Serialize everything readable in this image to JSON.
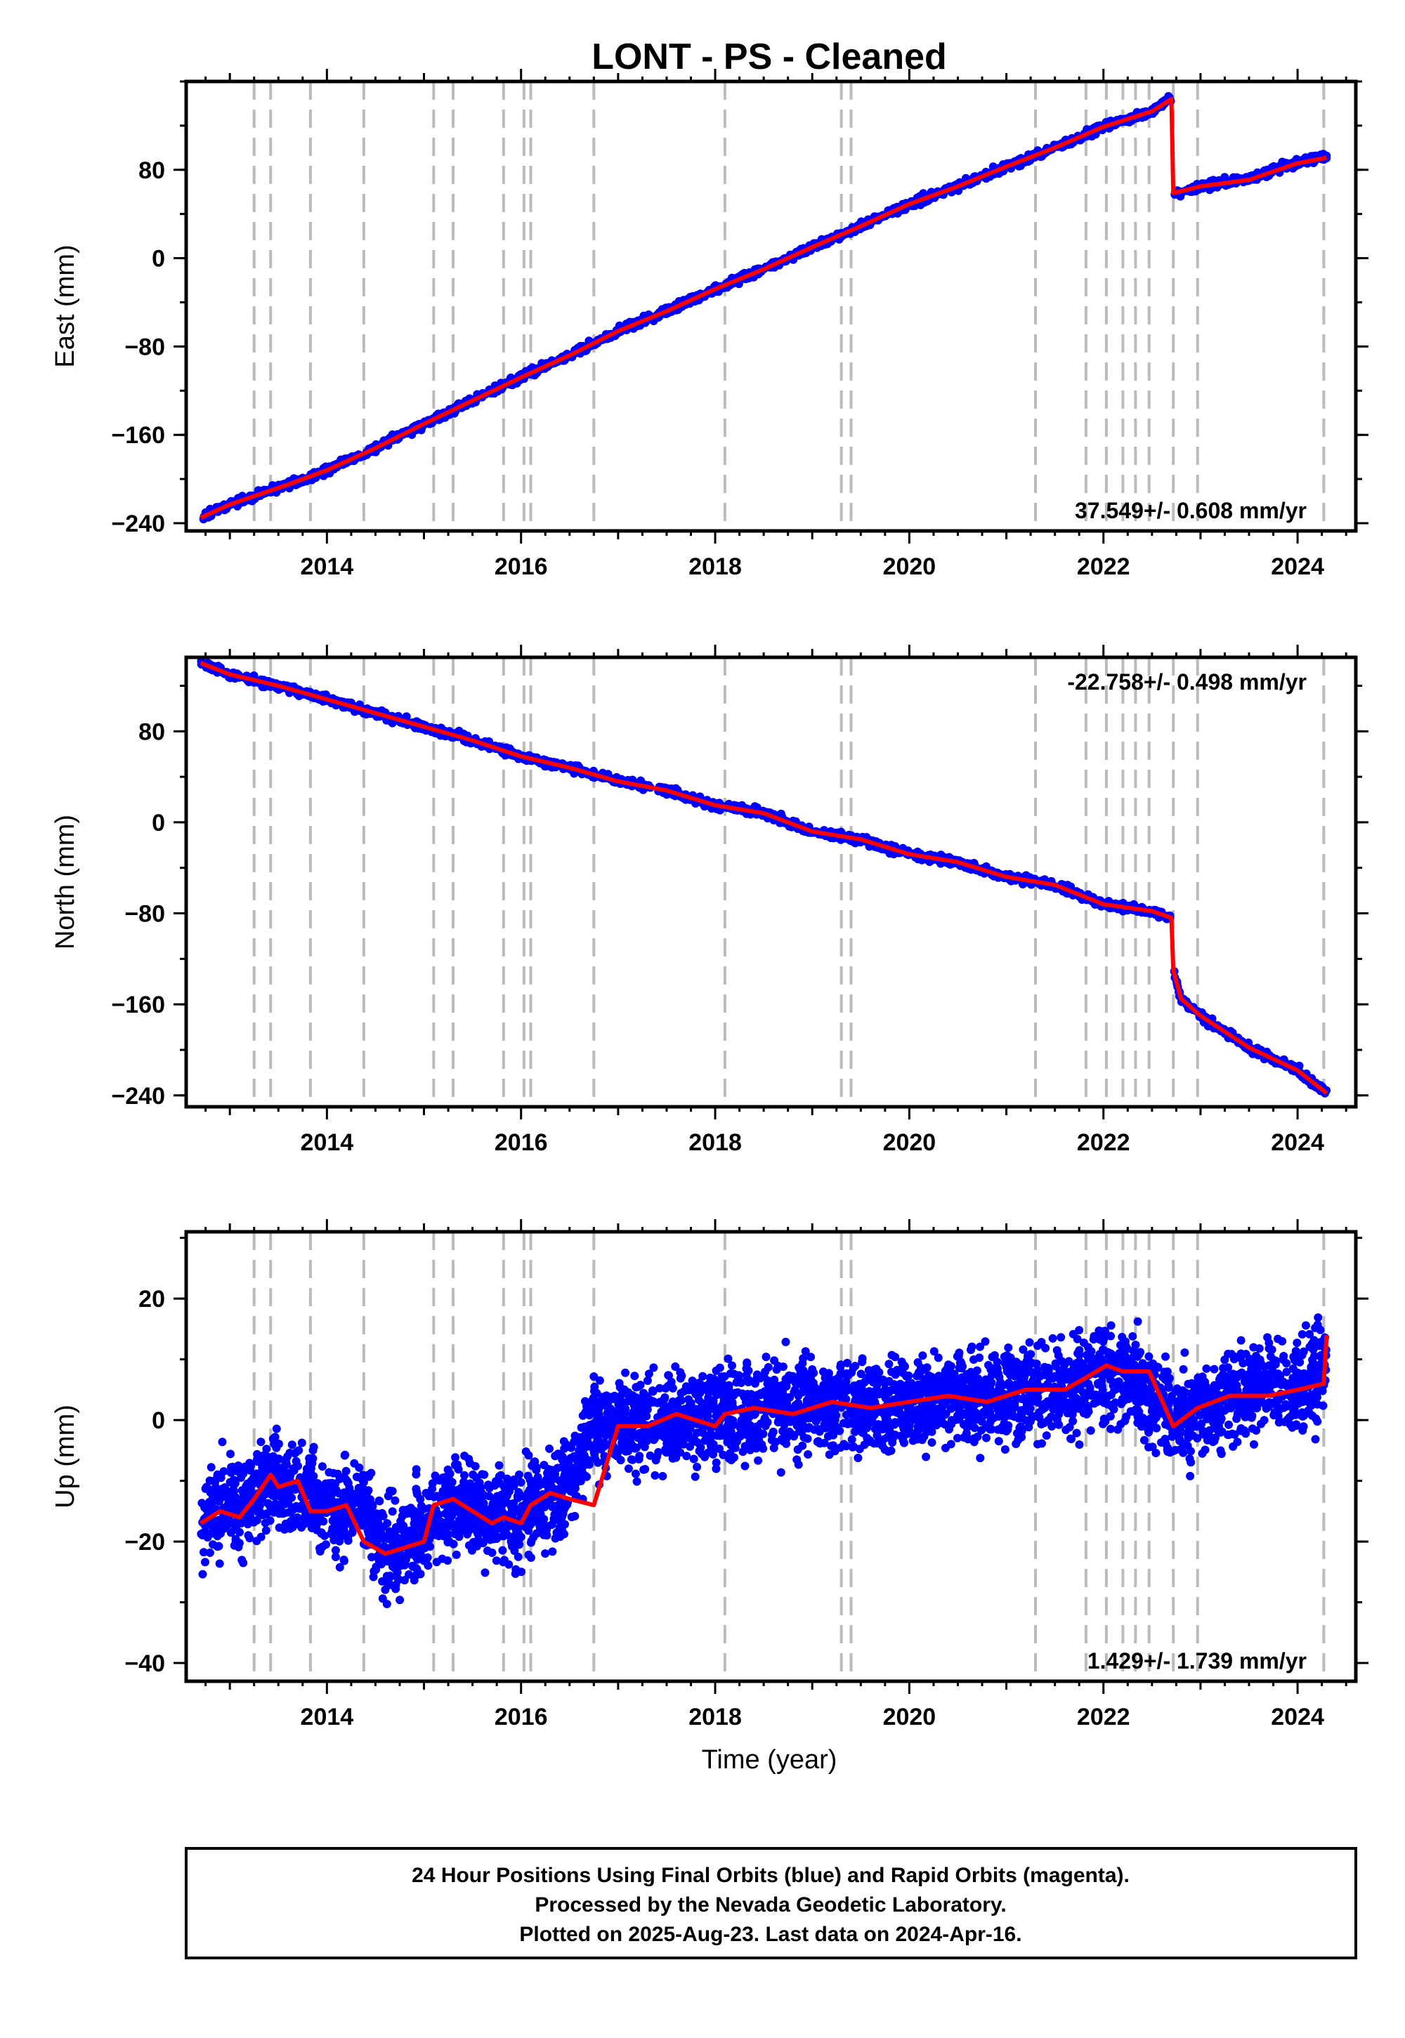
{
  "title": "LONT  - PS - Cleaned",
  "xlabel": "Time (year)",
  "footer": {
    "line1": "24 Hour Positions Using Final Orbits (blue) and Rapid Orbits (magenta).",
    "line2": "Processed by the Nevada Geodetic Laboratory.",
    "line3": "Plotted on 2025-Aug-23. Last data on 2024-Apr-16."
  },
  "colors": {
    "data": "#0000ff",
    "model": "#ff0000",
    "event_lines": "#bbbbbb",
    "frame": "#000000"
  },
  "chart_data": [
    {
      "type": "scatter",
      "name": "east",
      "ylabel": "East (mm)",
      "rate": "37.549+/- 0.608 mm/yr",
      "rate_position": "bottom-right",
      "xlim": [
        2012.55,
        2024.6
      ],
      "ylim": [
        -247,
        160
      ],
      "xticks": [
        2014,
        2016,
        2018,
        2020,
        2022,
        2024
      ],
      "yticks": [
        -240,
        -160,
        -80,
        0,
        80
      ],
      "event_lines": [
        2013.25,
        2013.42,
        2013.83,
        2014.38,
        2015.1,
        2015.3,
        2015.82,
        2016.03,
        2016.1,
        2016.75,
        2018.1,
        2019.3,
        2019.4,
        2021.3,
        2021.82,
        2022.03,
        2022.2,
        2022.33,
        2022.47,
        2022.72,
        2022.97,
        2024.27
      ],
      "series": [
        {
          "name": "",
          "style": "dots",
          "x": [
            2012.7,
            2013.0,
            2013.3,
            2013.6,
            2014.0,
            2014.5,
            2015.0,
            2015.5,
            2016.0,
            2016.5,
            2017.0,
            2017.5,
            2018.0,
            2018.5,
            2019.0,
            2019.5,
            2020.0,
            2020.5,
            2021.0,
            2021.5,
            2022.0,
            2022.5,
            2022.7,
            2022.72,
            2023.0,
            2023.5,
            2024.0,
            2024.3
          ],
          "y": [
            -235,
            -223,
            -214,
            -205,
            -192,
            -172,
            -150,
            -129,
            -108,
            -88,
            -66,
            -48,
            -28,
            -10,
            10,
            29,
            49,
            65,
            83,
            100,
            119,
            133,
            144,
            57,
            65,
            72,
            87,
            92
          ]
        },
        {
          "name": "",
          "style": "line",
          "x": [
            2012.7,
            2013.0,
            2013.3,
            2013.6,
            2014.0,
            2014.5,
            2015.0,
            2015.5,
            2016.0,
            2016.5,
            2017.0,
            2017.5,
            2018.0,
            2018.5,
            2019.0,
            2019.5,
            2020.0,
            2020.5,
            2021.0,
            2021.5,
            2022.0,
            2022.5,
            2022.7,
            2022.72,
            2023.0,
            2023.5,
            2024.0,
            2024.3
          ],
          "y": [
            -235,
            -223,
            -214,
            -205,
            -192,
            -172,
            -150,
            -129,
            -108,
            -88,
            -66,
            -48,
            -28,
            -10,
            10,
            29,
            49,
            65,
            83,
            100,
            119,
            133,
            144,
            59,
            65,
            71,
            86,
            91
          ]
        }
      ]
    },
    {
      "type": "scatter",
      "name": "north",
      "ylabel": "North (mm)",
      "rate": "-22.758+/- 0.498 mm/yr",
      "rate_position": "top-right",
      "xlim": [
        2012.55,
        2024.6
      ],
      "ylim": [
        -250,
        145
      ],
      "xticks": [
        2014,
        2016,
        2018,
        2020,
        2022,
        2024
      ],
      "yticks": [
        -240,
        -160,
        -80,
        0,
        80
      ],
      "event_lines": [
        2013.25,
        2013.42,
        2013.83,
        2014.38,
        2015.1,
        2015.3,
        2015.82,
        2016.03,
        2016.1,
        2016.75,
        2018.1,
        2019.3,
        2019.4,
        2021.3,
        2021.82,
        2022.03,
        2022.2,
        2022.33,
        2022.47,
        2022.72,
        2022.97,
        2024.27
      ],
      "series": [
        {
          "name": "",
          "style": "dots",
          "x": [
            2012.7,
            2013.0,
            2013.5,
            2014.0,
            2014.5,
            2015.0,
            2015.5,
            2016.0,
            2016.5,
            2017.0,
            2017.5,
            2018.0,
            2018.5,
            2019.0,
            2019.5,
            2020.0,
            2020.5,
            2021.0,
            2021.5,
            2022.0,
            2022.5,
            2022.7,
            2022.72,
            2022.8,
            2023.0,
            2023.5,
            2024.0,
            2024.3
          ],
          "y": [
            140,
            130,
            120,
            108,
            96,
            84,
            72,
            58,
            48,
            36,
            28,
            15,
            8,
            -8,
            -15,
            -28,
            -35,
            -48,
            -55,
            -72,
            -78,
            -84,
            -130,
            -155,
            -170,
            -198,
            -218,
            -238
          ]
        },
        {
          "name": "",
          "style": "line",
          "x": [
            2012.7,
            2013.0,
            2013.5,
            2014.0,
            2014.5,
            2015.0,
            2015.5,
            2016.0,
            2016.5,
            2017.0,
            2017.5,
            2018.0,
            2018.5,
            2019.0,
            2019.5,
            2020.0,
            2020.5,
            2021.0,
            2021.5,
            2022.0,
            2022.5,
            2022.7,
            2022.72,
            2022.8,
            2023.0,
            2023.5,
            2024.0,
            2024.3
          ],
          "y": [
            140,
            130,
            120,
            108,
            96,
            84,
            72,
            58,
            48,
            36,
            28,
            15,
            8,
            -8,
            -15,
            -28,
            -35,
            -48,
            -55,
            -72,
            -78,
            -84,
            -130,
            -155,
            -170,
            -198,
            -218,
            -238
          ]
        }
      ]
    },
    {
      "type": "scatter",
      "name": "up",
      "ylabel": "Up (mm)",
      "rate": "1.429+/- 1.739 mm/yr",
      "rate_position": "bottom-right",
      "xlim": [
        2012.55,
        2024.6
      ],
      "ylim": [
        -43,
        31
      ],
      "xticks": [
        2014,
        2016,
        2018,
        2020,
        2022,
        2024
      ],
      "yticks": [
        -40,
        -20,
        0,
        20
      ],
      "event_lines": [
        2013.25,
        2013.42,
        2013.83,
        2014.38,
        2015.1,
        2015.3,
        2015.82,
        2016.03,
        2016.1,
        2016.75,
        2018.1,
        2019.3,
        2019.4,
        2021.3,
        2021.82,
        2022.03,
        2022.2,
        2022.33,
        2022.47,
        2022.72,
        2022.97,
        2024.27
      ],
      "series": [
        {
          "name": "",
          "style": "dots",
          "x": [
            2012.7,
            2013.0,
            2013.25,
            2013.42,
            2013.83,
            2014.0,
            2014.38,
            2014.6,
            2014.8,
            2015.1,
            2015.3,
            2015.6,
            2015.82,
            2016.0,
            2016.1,
            2016.4,
            2016.75,
            2017.0,
            2017.5,
            2018.0,
            2018.5,
            2019.0,
            2019.5,
            2020.0,
            2020.5,
            2021.0,
            2021.5,
            2022.0,
            2022.3,
            2022.72,
            2023.0,
            2023.5,
            2024.0,
            2024.3
          ],
          "y": [
            -16,
            -15,
            -13,
            -10,
            -12,
            -15,
            -14,
            -21,
            -21,
            -16,
            -13,
            -15,
            -16,
            -17,
            -14,
            -13,
            -1,
            -1,
            0,
            1,
            2,
            3,
            2,
            3,
            4,
            4,
            5,
            7,
            7,
            0,
            2,
            5,
            6,
            10
          ]
        },
        {
          "name": "",
          "style": "line",
          "x": [
            2012.7,
            2012.9,
            2013.1,
            2013.25,
            2013.42,
            2013.5,
            2013.7,
            2013.83,
            2014.0,
            2014.2,
            2014.38,
            2014.6,
            2014.8,
            2015.0,
            2015.1,
            2015.3,
            2015.5,
            2015.7,
            2015.82,
            2016.0,
            2016.1,
            2016.3,
            2016.5,
            2016.75,
            2017.0,
            2017.3,
            2017.6,
            2018.0,
            2018.1,
            2018.4,
            2018.8,
            2019.2,
            2019.6,
            2020.0,
            2020.4,
            2020.8,
            2021.2,
            2021.6,
            2021.82,
            2022.03,
            2022.2,
            2022.33,
            2022.47,
            2022.72,
            2022.97,
            2023.3,
            2023.7,
            2024.0,
            2024.27,
            2024.3
          ],
          "y": [
            -17,
            -15,
            -16,
            -13,
            -9,
            -11,
            -10,
            -15,
            -15,
            -14,
            -20,
            -22,
            -21,
            -20,
            -14,
            -13,
            -15,
            -17,
            -16,
            -17,
            -14,
            -12,
            -13,
            -14,
            -1,
            -1,
            1,
            -1,
            1,
            2,
            1,
            3,
            2,
            3,
            4,
            3,
            5,
            5,
            7,
            9,
            8,
            8,
            8,
            -1,
            2,
            4,
            4,
            5,
            6,
            14
          ]
        }
      ]
    }
  ]
}
